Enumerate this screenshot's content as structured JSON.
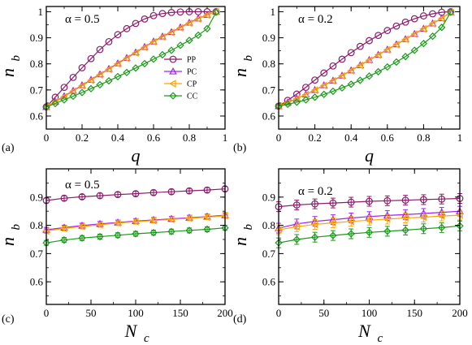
{
  "chart_data": [
    {
      "type": "line",
      "panel_label": "(a)",
      "annotation": "α = 0.5",
      "xlabel": "q",
      "ylabel": "n",
      "ylabel_sub": "b",
      "xlim": [
        0,
        1
      ],
      "ylim": [
        0.55,
        1.02
      ],
      "xticks": [
        "0",
        "0.2",
        "0.4",
        "0.6",
        "0.8",
        "1"
      ],
      "yticks": [
        "0.6",
        "0.7",
        "0.8",
        "0.9",
        "1"
      ],
      "xtick_values": [
        0,
        0.2,
        0.4,
        0.6,
        0.8,
        1
      ],
      "ytick_values": [
        0.6,
        0.7,
        0.8,
        0.9,
        1
      ],
      "legend": {
        "placement": "center-right",
        "entries": [
          "PP",
          "PC",
          "CP",
          "CC"
        ]
      },
      "series": [
        {
          "name": "PP",
          "color": "#8b1a6b",
          "marker": "circle",
          "x": [
            0.0,
            0.05,
            0.1,
            0.15,
            0.2,
            0.25,
            0.3,
            0.35,
            0.4,
            0.45,
            0.5,
            0.55,
            0.6,
            0.65,
            0.7,
            0.75,
            0.8,
            0.85,
            0.9,
            0.95
          ],
          "y": [
            0.635,
            0.672,
            0.71,
            0.748,
            0.785,
            0.82,
            0.855,
            0.885,
            0.912,
            0.935,
            0.955,
            0.972,
            0.985,
            0.993,
            0.997,
            0.999,
            1.0,
            1.0,
            1.0,
            1.0
          ]
        },
        {
          "name": "PC",
          "color": "#a020f0",
          "marker": "triangle-up",
          "x": [
            0.0,
            0.05,
            0.1,
            0.15,
            0.2,
            0.25,
            0.3,
            0.35,
            0.4,
            0.45,
            0.5,
            0.55,
            0.6,
            0.65,
            0.7,
            0.75,
            0.8,
            0.85,
            0.9,
            0.95
          ],
          "y": [
            0.635,
            0.655,
            0.676,
            0.697,
            0.718,
            0.739,
            0.76,
            0.781,
            0.802,
            0.823,
            0.844,
            0.865,
            0.886,
            0.905,
            0.922,
            0.94,
            0.958,
            0.974,
            0.988,
            1.0
          ]
        },
        {
          "name": "CP",
          "color": "#ffa500",
          "marker": "triangle-left",
          "x": [
            0.0,
            0.05,
            0.1,
            0.15,
            0.2,
            0.25,
            0.3,
            0.35,
            0.4,
            0.45,
            0.5,
            0.55,
            0.6,
            0.65,
            0.7,
            0.75,
            0.8,
            0.85,
            0.9,
            0.95
          ],
          "y": [
            0.635,
            0.654,
            0.674,
            0.695,
            0.716,
            0.737,
            0.758,
            0.779,
            0.8,
            0.821,
            0.842,
            0.863,
            0.884,
            0.903,
            0.92,
            0.938,
            0.956,
            0.972,
            0.987,
            1.0
          ]
        },
        {
          "name": "CC",
          "color": "#1a9a1a",
          "marker": "diamond",
          "x": [
            0.0,
            0.05,
            0.1,
            0.15,
            0.2,
            0.25,
            0.3,
            0.35,
            0.4,
            0.45,
            0.5,
            0.55,
            0.6,
            0.65,
            0.7,
            0.75,
            0.8,
            0.85,
            0.9,
            0.95
          ],
          "y": [
            0.635,
            0.648,
            0.662,
            0.676,
            0.69,
            0.705,
            0.72,
            0.735,
            0.751,
            0.767,
            0.784,
            0.801,
            0.818,
            0.835,
            0.852,
            0.871,
            0.89,
            0.91,
            0.935,
            0.998
          ]
        }
      ]
    },
    {
      "type": "line",
      "panel_label": "(b)",
      "annotation": "α = 0.2",
      "xlabel": "q",
      "ylabel": "n",
      "ylabel_sub": "b",
      "xlim": [
        0,
        1
      ],
      "ylim": [
        0.55,
        1.02
      ],
      "xticks": [
        "0",
        "0.2",
        "0.4",
        "0.6",
        "0.8",
        "1"
      ],
      "yticks": [
        "0.6",
        "0.7",
        "0.8",
        "0.9",
        "1"
      ],
      "xtick_values": [
        0,
        0.2,
        0.4,
        0.6,
        0.8,
        1
      ],
      "ytick_values": [
        0.6,
        0.7,
        0.8,
        0.9,
        1
      ],
      "series": [
        {
          "name": "PP",
          "color": "#8b1a6b",
          "marker": "circle",
          "x": [
            0.0,
            0.05,
            0.1,
            0.15,
            0.2,
            0.25,
            0.3,
            0.35,
            0.4,
            0.45,
            0.5,
            0.55,
            0.6,
            0.65,
            0.7,
            0.75,
            0.8,
            0.85,
            0.9,
            0.95
          ],
          "y": [
            0.638,
            0.66,
            0.684,
            0.71,
            0.738,
            0.765,
            0.792,
            0.818,
            0.843,
            0.867,
            0.889,
            0.909,
            0.928,
            0.945,
            0.96,
            0.973,
            0.984,
            0.992,
            0.998,
            1.0
          ]
        },
        {
          "name": "PC",
          "color": "#a020f0",
          "marker": "triangle-up",
          "x": [
            0.0,
            0.05,
            0.1,
            0.15,
            0.2,
            0.25,
            0.3,
            0.35,
            0.4,
            0.45,
            0.5,
            0.55,
            0.6,
            0.65,
            0.7,
            0.75,
            0.8,
            0.85,
            0.9,
            0.95
          ],
          "y": [
            0.638,
            0.652,
            0.667,
            0.683,
            0.7,
            0.718,
            0.736,
            0.755,
            0.775,
            0.795,
            0.815,
            0.835,
            0.855,
            0.875,
            0.895,
            0.915,
            0.935,
            0.955,
            0.975,
            0.998
          ]
        },
        {
          "name": "CP",
          "color": "#ffa500",
          "marker": "triangle-left",
          "x": [
            0.0,
            0.05,
            0.1,
            0.15,
            0.2,
            0.25,
            0.3,
            0.35,
            0.4,
            0.45,
            0.5,
            0.55,
            0.6,
            0.65,
            0.7,
            0.75,
            0.8,
            0.85,
            0.9,
            0.95
          ],
          "y": [
            0.638,
            0.651,
            0.666,
            0.682,
            0.699,
            0.717,
            0.735,
            0.754,
            0.774,
            0.794,
            0.814,
            0.834,
            0.854,
            0.874,
            0.894,
            0.914,
            0.934,
            0.954,
            0.974,
            0.998
          ]
        },
        {
          "name": "CC",
          "color": "#1a9a1a",
          "marker": "diamond",
          "x": [
            0.0,
            0.05,
            0.1,
            0.15,
            0.2,
            0.25,
            0.3,
            0.35,
            0.4,
            0.45,
            0.5,
            0.55,
            0.6,
            0.65,
            0.7,
            0.75,
            0.8,
            0.85,
            0.9,
            0.95
          ],
          "y": [
            0.638,
            0.645,
            0.653,
            0.662,
            0.672,
            0.683,
            0.695,
            0.708,
            0.722,
            0.737,
            0.753,
            0.77,
            0.788,
            0.807,
            0.828,
            0.852,
            0.878,
            0.906,
            0.94,
            0.998
          ]
        }
      ]
    },
    {
      "type": "line",
      "panel_label": "(c)",
      "annotation": "α = 0.5",
      "xlabel": "N",
      "xlabel_sub": "c",
      "ylabel": "n",
      "ylabel_sub": "b",
      "xlim": [
        0,
        200
      ],
      "ylim": [
        0.52,
        1.0
      ],
      "xticks": [
        "0",
        "50",
        "100",
        "150",
        "200"
      ],
      "yticks": [
        "0.6",
        "0.7",
        "0.8",
        "0.9"
      ],
      "xtick_values": [
        0,
        50,
        100,
        150,
        200
      ],
      "ytick_values": [
        0.6,
        0.7,
        0.8,
        0.9
      ],
      "series": [
        {
          "name": "PP",
          "color": "#8b1a6b",
          "marker": "circle",
          "x": [
            0,
            20,
            40,
            60,
            80,
            100,
            120,
            140,
            160,
            180,
            200
          ],
          "y": [
            0.888,
            0.896,
            0.901,
            0.905,
            0.909,
            0.912,
            0.916,
            0.919,
            0.922,
            0.925,
            0.929
          ]
        },
        {
          "name": "PC",
          "color": "#a020f0",
          "marker": "triangle-up",
          "x": [
            0,
            20,
            40,
            60,
            80,
            100,
            120,
            140,
            160,
            180,
            200
          ],
          "y": [
            0.784,
            0.792,
            0.799,
            0.805,
            0.81,
            0.815,
            0.819,
            0.823,
            0.827,
            0.831,
            0.836
          ]
        },
        {
          "name": "CP",
          "color": "#ffa500",
          "marker": "triangle-left",
          "x": [
            0,
            20,
            40,
            60,
            80,
            100,
            120,
            140,
            160,
            180,
            200
          ],
          "y": [
            0.78,
            0.789,
            0.796,
            0.802,
            0.808,
            0.813,
            0.817,
            0.821,
            0.825,
            0.829,
            0.834
          ]
        },
        {
          "name": "CC",
          "color": "#1a9a1a",
          "marker": "diamond",
          "x": [
            0,
            20,
            40,
            60,
            80,
            100,
            120,
            140,
            160,
            180,
            200
          ],
          "y": [
            0.738,
            0.748,
            0.755,
            0.76,
            0.765,
            0.77,
            0.774,
            0.778,
            0.782,
            0.786,
            0.791
          ]
        }
      ]
    },
    {
      "type": "line",
      "panel_label": "(d)",
      "annotation": "α = 0.2",
      "xlabel": "N",
      "xlabel_sub": "c",
      "ylabel": "n",
      "ylabel_sub": "b",
      "xlim": [
        0,
        200
      ],
      "ylim": [
        0.52,
        1.0
      ],
      "xticks": [
        "0",
        "50",
        "100",
        "150",
        "200"
      ],
      "yticks": [
        "0.6",
        "0.7",
        "0.8",
        "0.9"
      ],
      "xtick_values": [
        0,
        50,
        100,
        150,
        200
      ],
      "ytick_values": [
        0.6,
        0.7,
        0.8,
        0.9
      ],
      "series": [
        {
          "name": "PP",
          "color": "#8b1a6b",
          "marker": "circle",
          "x": [
            0,
            20,
            40,
            60,
            80,
            100,
            120,
            140,
            160,
            180,
            200
          ],
          "y": [
            0.866,
            0.872,
            0.876,
            0.879,
            0.882,
            0.885,
            0.887,
            0.889,
            0.891,
            0.893,
            0.895
          ]
        },
        {
          "name": "PC",
          "color": "#a020f0",
          "marker": "triangle-up",
          "x": [
            0,
            20,
            40,
            60,
            80,
            100,
            120,
            140,
            160,
            180,
            200
          ],
          "y": [
            0.79,
            0.805,
            0.814,
            0.82,
            0.826,
            0.831,
            0.835,
            0.838,
            0.842,
            0.846,
            0.85
          ]
        },
        {
          "name": "CP",
          "color": "#ffa500",
          "marker": "triangle-left",
          "x": [
            0,
            20,
            40,
            60,
            80,
            100,
            120,
            140,
            160,
            180,
            200
          ],
          "y": [
            0.784,
            0.795,
            0.803,
            0.809,
            0.814,
            0.818,
            0.822,
            0.826,
            0.829,
            0.833,
            0.836
          ]
        },
        {
          "name": "CC",
          "color": "#1a9a1a",
          "marker": "diamond",
          "x": [
            0,
            20,
            40,
            60,
            80,
            100,
            120,
            140,
            160,
            180,
            200
          ],
          "y": [
            0.738,
            0.75,
            0.758,
            0.764,
            0.77,
            0.775,
            0.779,
            0.783,
            0.788,
            0.792,
            0.798
          ]
        }
      ]
    }
  ]
}
